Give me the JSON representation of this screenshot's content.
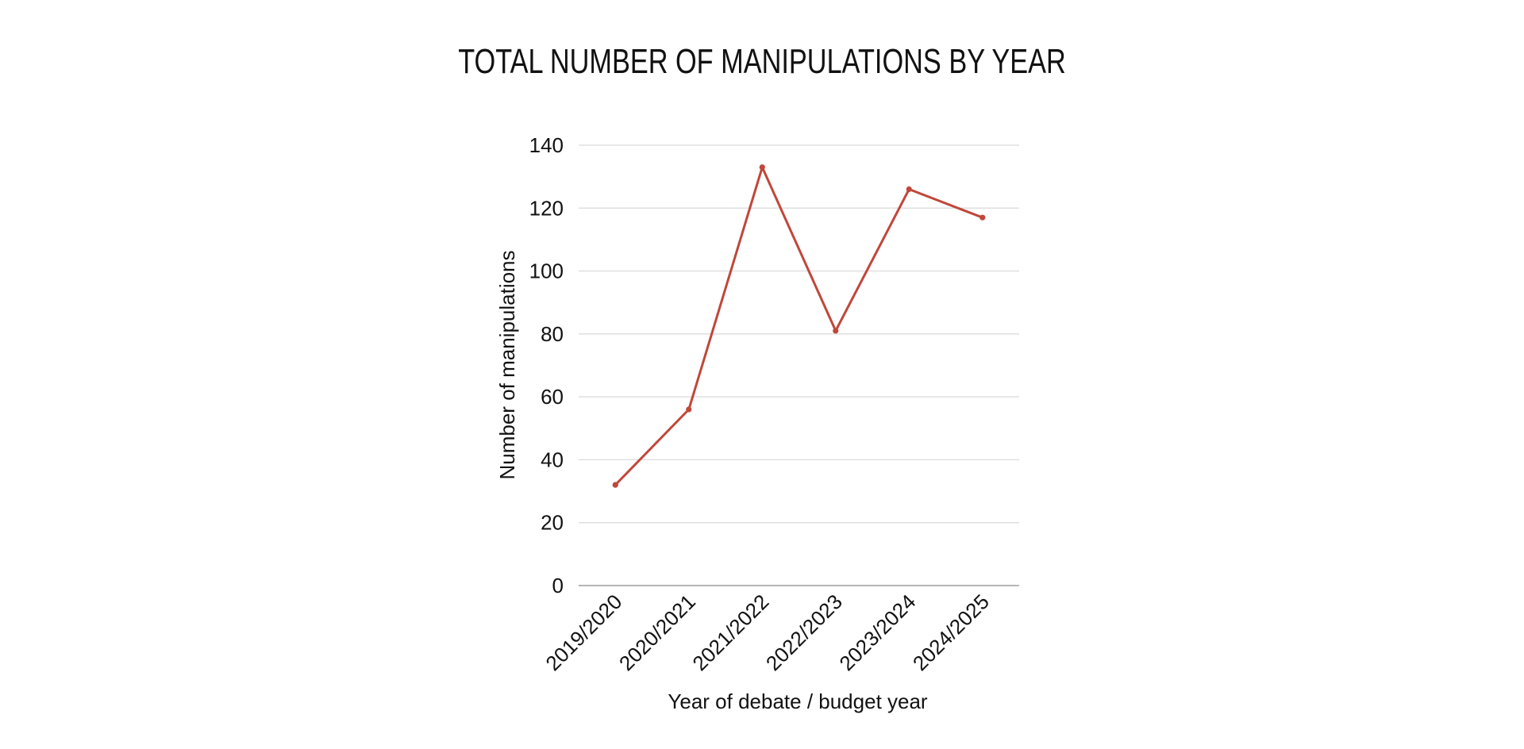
{
  "colors": {
    "series": "#c0473a",
    "text": "#111111",
    "grid": "#d9d9d9",
    "baseline": "#9e9e9e",
    "background": "#ffffff"
  },
  "chart_data": {
    "type": "line",
    "title": "TOTAL NUMBER OF MANIPULATIONS BY YEAR",
    "xlabel": "Year of debate / budget year",
    "ylabel": "Number of manipulations",
    "categories": [
      "2019/2020",
      "2020/2021",
      "2021/2022",
      "2022/2023",
      "2023/2024",
      "2024/2025"
    ],
    "series": [
      {
        "values": [
          32,
          56,
          133,
          81,
          126,
          117
        ]
      }
    ],
    "ylim": [
      0,
      140
    ],
    "yticks": [
      0,
      20,
      40,
      60,
      80,
      100,
      120,
      140
    ],
    "grid": true,
    "legend": "none",
    "markers": true
  }
}
